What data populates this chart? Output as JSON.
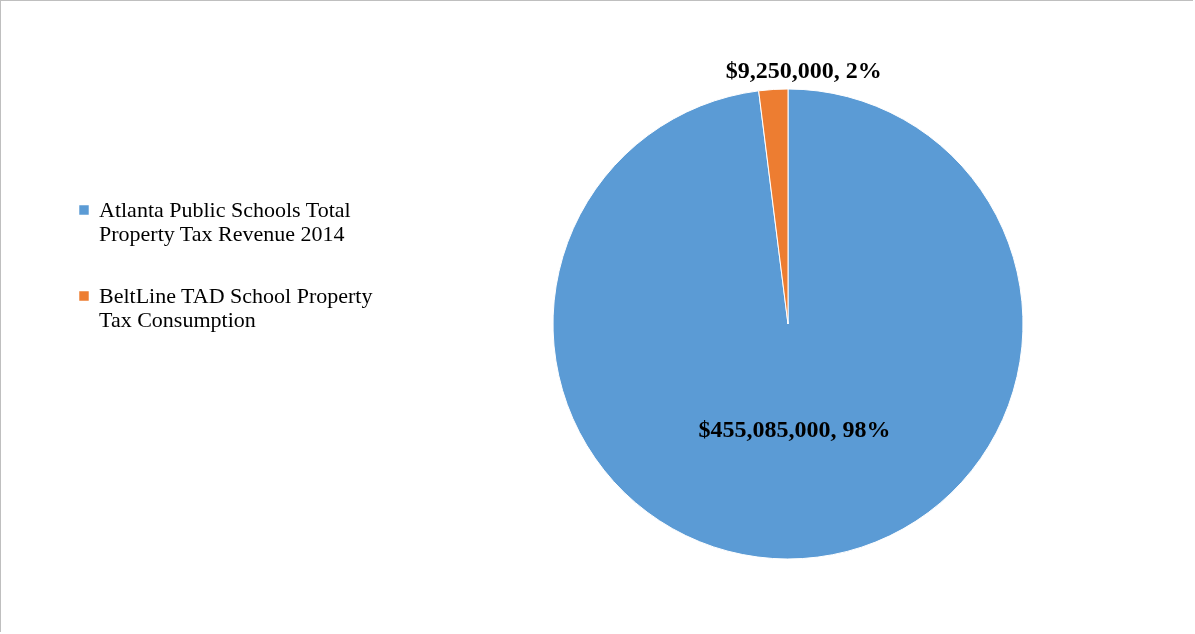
{
  "chart_data": {
    "type": "pie",
    "categories": [
      "Atlanta Public Schools Total Property Tax Revenue 2014",
      "BeltLine TAD School Property Tax Consumption"
    ],
    "values": [
      455085000,
      9250000
    ],
    "colors": [
      "#5b9bd5",
      "#ed7d31"
    ],
    "value_labels": [
      "$455,085,000, 98%",
      "$9,250,000, 2%"
    ],
    "legend": "left"
  }
}
